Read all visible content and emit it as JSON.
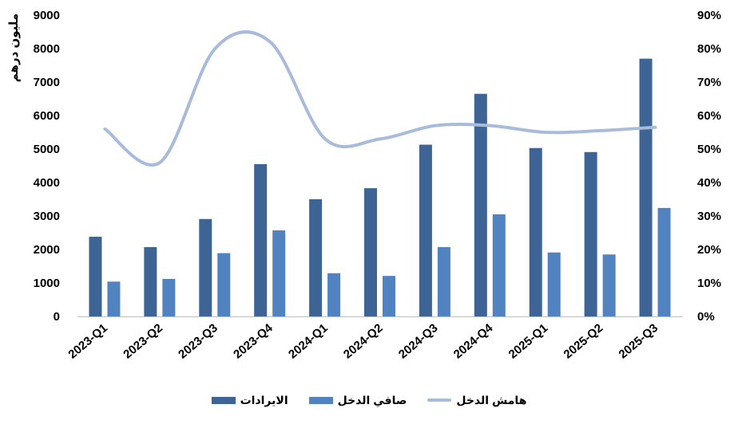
{
  "chart_data": {
    "type": "bar",
    "ylabel": "مليون درهم",
    "ylim": [
      0,
      9000
    ],
    "y_ticks": [
      "0",
      "1000",
      "2000",
      "3000",
      "4000",
      "5000",
      "6000",
      "7000",
      "8000",
      "9000"
    ],
    "y2lim": [
      0,
      90
    ],
    "y2_ticks": [
      "0%",
      "10%",
      "20%",
      "30%",
      "40%",
      "50%",
      "60%",
      "70%",
      "80%",
      "90%"
    ],
    "categories": [
      "2023-Q1",
      "2023-Q2",
      "2023-Q3",
      "2023-Q4",
      "2024-Q1",
      "2024-Q2",
      "2024-Q3",
      "2024-Q4",
      "2025-Q1",
      "2025-Q2",
      "2025-Q3"
    ],
    "series": [
      {
        "name": "الايرادات",
        "type": "bar",
        "axis": "left",
        "color": "#3d6494",
        "values": [
          2380,
          2070,
          2910,
          4550,
          3500,
          3830,
          5130,
          6650,
          5030,
          4910,
          7700
        ]
      },
      {
        "name": "صافي الدخل",
        "type": "bar",
        "axis": "left",
        "color": "#5283c1",
        "values": [
          1040,
          1120,
          1890,
          2570,
          1290,
          1210,
          2070,
          3050,
          1910,
          1850,
          3240
        ]
      },
      {
        "name": "هامش الدخل",
        "type": "line",
        "axis": "right",
        "color": "#a8bbdb",
        "values": [
          56,
          46,
          80,
          82,
          53,
          53,
          57,
          57,
          55,
          55.5,
          56.5
        ]
      }
    ],
    "grid": false,
    "legend": "bottom"
  }
}
